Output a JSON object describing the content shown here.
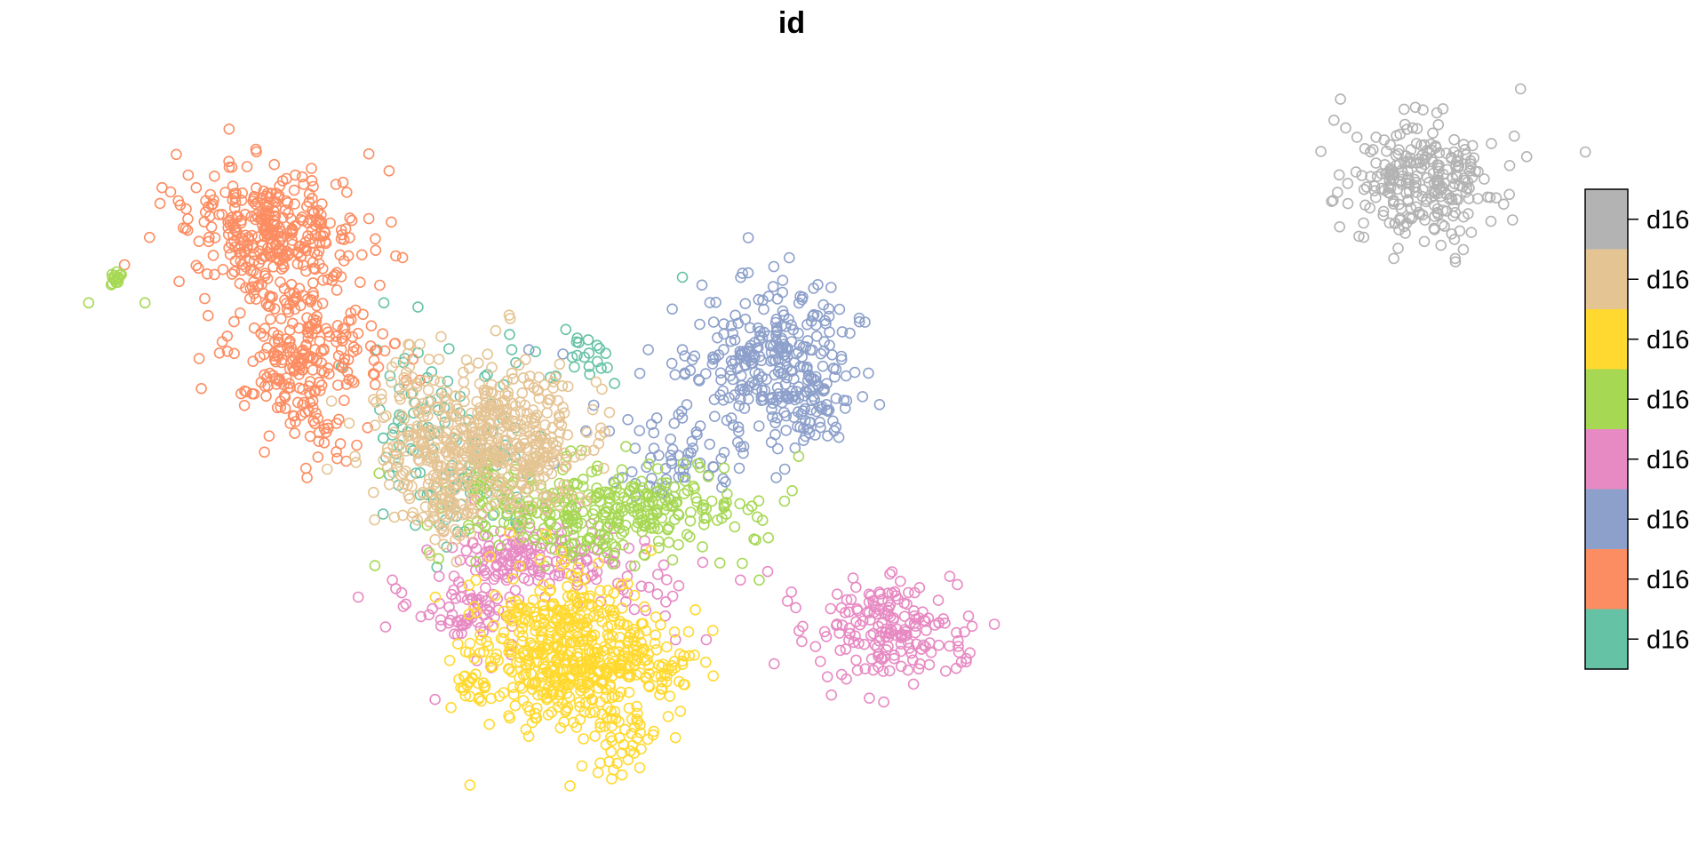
{
  "chart_data": {
    "type": "scatter",
    "title": "id",
    "xlabel": "",
    "ylabel": "",
    "axes": "none",
    "grid": false,
    "marker": "open-circle",
    "legend": {
      "placement": "right",
      "style": "color-key",
      "order": "top-to-bottom",
      "entries": [
        {
          "label": "d16",
          "color": "#B3B3B3"
        },
        {
          "label": "d16",
          "color": "#E5C494"
        },
        {
          "label": "d16",
          "color": "#FFD92F"
        },
        {
          "label": "d16",
          "color": "#A6D854"
        },
        {
          "label": "d16",
          "color": "#E78AC3"
        },
        {
          "label": "d16",
          "color": "#8DA0CB"
        },
        {
          "label": "d16",
          "color": "#FC8D62"
        },
        {
          "label": "d16",
          "color": "#66C2A5"
        }
      ]
    },
    "series": [
      {
        "color": "#66C2A5",
        "clusters": [
          {
            "x": 0.27,
            "y": 0.54,
            "sx": 0.022,
            "sy": 0.05,
            "n": 90
          },
          {
            "x": 0.24,
            "y": 0.47,
            "sx": 0.01,
            "sy": 0.04,
            "n": 25
          },
          {
            "x": 0.33,
            "y": 0.42,
            "sx": 0.02,
            "sy": 0.02,
            "n": 25
          }
        ],
        "outliers": [
          [
            0.225,
            0.355
          ],
          [
            0.245,
            0.36
          ],
          [
            0.2,
            0.43
          ],
          [
            0.23,
            0.51
          ],
          [
            0.3,
            0.41
          ],
          [
            0.4,
            0.325
          ]
        ]
      },
      {
        "color": "#FC8D62",
        "clusters": [
          {
            "x": 0.16,
            "y": 0.27,
            "sx": 0.025,
            "sy": 0.035,
            "n": 320
          },
          {
            "x": 0.175,
            "y": 0.41,
            "sx": 0.02,
            "sy": 0.045,
            "n": 230
          },
          {
            "x": 0.19,
            "y": 0.52,
            "sx": 0.008,
            "sy": 0.02,
            "n": 20
          },
          {
            "x": 0.22,
            "y": 0.43,
            "sx": 0.012,
            "sy": 0.02,
            "n": 20
          }
        ],
        "outliers": [
          [
            0.1,
            0.225
          ],
          [
            0.095,
            0.22
          ],
          [
            0.115,
            0.22
          ],
          [
            0.11,
            0.27
          ],
          [
            0.15,
            0.175
          ],
          [
            0.2,
            0.28
          ],
          [
            0.22,
            0.28
          ],
          [
            0.232,
            0.3
          ],
          [
            0.236,
            0.302
          ],
          [
            0.12,
            0.35
          ],
          [
            0.122,
            0.37
          ],
          [
            0.105,
            0.33
          ],
          [
            0.155,
            0.53
          ],
          [
            0.18,
            0.56
          ]
        ]
      },
      {
        "color": "#8DA0CB",
        "clusters": [
          {
            "x": 0.45,
            "y": 0.42,
            "sx": 0.025,
            "sy": 0.045,
            "n": 280
          },
          {
            "x": 0.475,
            "y": 0.47,
            "sx": 0.012,
            "sy": 0.025,
            "n": 50
          },
          {
            "x": 0.4,
            "y": 0.54,
            "sx": 0.02,
            "sy": 0.02,
            "n": 60
          }
        ],
        "outliers": [
          [
            0.31,
            0.41
          ],
          [
            0.33,
            0.415
          ],
          [
            0.38,
            0.41
          ],
          [
            0.4,
            0.41
          ],
          [
            0.348,
            0.475
          ],
          [
            0.368,
            0.492
          ],
          [
            0.385,
            0.49
          ],
          [
            0.4,
            0.49
          ],
          [
            0.46,
            0.55
          ],
          [
            0.455,
            0.56
          ]
        ]
      },
      {
        "color": "#E78AC3",
        "clusters": [
          {
            "x": 0.31,
            "y": 0.65,
            "sx": 0.025,
            "sy": 0.022,
            "n": 150
          },
          {
            "x": 0.275,
            "y": 0.71,
            "sx": 0.015,
            "sy": 0.025,
            "n": 70
          },
          {
            "x": 0.52,
            "y": 0.74,
            "sx": 0.022,
            "sy": 0.03,
            "n": 180
          },
          {
            "x": 0.37,
            "y": 0.68,
            "sx": 0.015,
            "sy": 0.02,
            "n": 25
          }
        ],
        "outliers": [
          [
            0.21,
            0.7
          ],
          [
            0.23,
            0.68
          ],
          [
            0.232,
            0.69
          ],
          [
            0.226,
            0.735
          ],
          [
            0.255,
            0.82
          ],
          [
            0.47,
            0.752
          ],
          [
            0.478,
            0.758
          ],
          [
            0.518,
            0.823
          ],
          [
            0.434,
            0.68
          ],
          [
            0.396,
            0.75
          ],
          [
            0.414,
            0.75
          ],
          [
            0.45,
            0.67
          ]
        ]
      },
      {
        "color": "#A6D854",
        "clusters": [
          {
            "x": 0.355,
            "y": 0.6,
            "sx": 0.04,
            "sy": 0.03,
            "n": 330
          },
          {
            "x": 0.285,
            "y": 0.57,
            "sx": 0.01,
            "sy": 0.015,
            "n": 20
          },
          {
            "x": 0.068,
            "y": 0.325,
            "sx": 0.002,
            "sy": 0.004,
            "n": 15
          }
        ],
        "outliers": [
          [
            0.052,
            0.355
          ],
          [
            0.085,
            0.355
          ],
          [
            0.447,
            0.61
          ],
          [
            0.442,
            0.632
          ],
          [
            0.443,
            0.633
          ],
          [
            0.445,
            0.68
          ],
          [
            0.422,
            0.66
          ],
          [
            0.307,
            0.63
          ],
          [
            0.275,
            0.62
          ]
        ]
      },
      {
        "color": "#FFD92F",
        "clusters": [
          {
            "x": 0.325,
            "y": 0.76,
            "sx": 0.025,
            "sy": 0.045,
            "n": 420
          },
          {
            "x": 0.37,
            "y": 0.79,
            "sx": 0.02,
            "sy": 0.03,
            "n": 120
          },
          {
            "x": 0.275,
            "y": 0.805,
            "sx": 0.005,
            "sy": 0.008,
            "n": 15
          },
          {
            "x": 0.365,
            "y": 0.87,
            "sx": 0.012,
            "sy": 0.02,
            "n": 40
          }
        ],
        "outliers": [
          [
            0.375,
            0.9
          ],
          [
            0.312,
            0.847
          ],
          [
            0.4,
            0.775
          ],
          [
            0.407,
            0.768
          ]
        ]
      },
      {
        "color": "#E5C494",
        "clusters": [
          {
            "x": 0.28,
            "y": 0.51,
            "sx": 0.03,
            "sy": 0.045,
            "n": 480
          },
          {
            "x": 0.26,
            "y": 0.6,
            "sx": 0.015,
            "sy": 0.02,
            "n": 60
          },
          {
            "x": 0.32,
            "y": 0.545,
            "sx": 0.01,
            "sy": 0.02,
            "n": 40
          }
        ],
        "outliers": [
          [
            0.232,
            0.425
          ],
          [
            0.24,
            0.43
          ],
          [
            0.31,
            0.45
          ],
          [
            0.315,
            0.458
          ]
        ]
      },
      {
        "color": "#B3B3B3",
        "clusters": [
          {
            "x": 0.835,
            "y": 0.21,
            "sx": 0.022,
            "sy": 0.035,
            "n": 260
          }
        ],
        "outliers": [
          [
            0.785,
            0.205
          ],
          [
            0.79,
            0.215
          ],
          [
            0.877,
            0.232
          ],
          [
            0.817,
            0.303
          ],
          [
            0.853,
            0.303
          ],
          [
            0.823,
            0.128
          ]
        ]
      }
    ]
  }
}
